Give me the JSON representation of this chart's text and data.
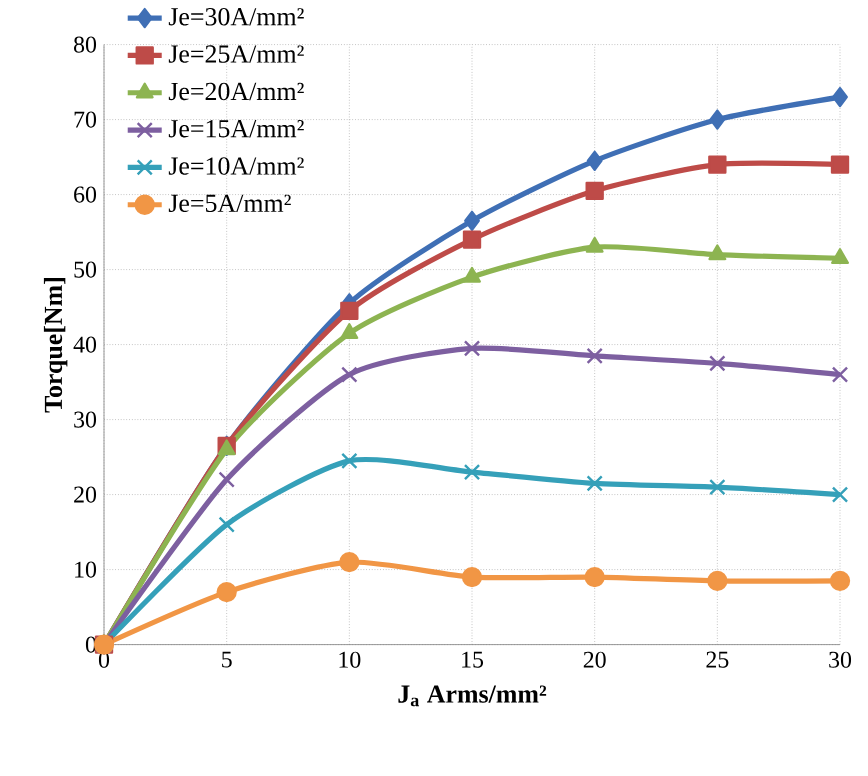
{
  "chart_data": {
    "type": "line",
    "xlabel": "J$_{a}$ Arms/mm²",
    "ylabel": "Torque[Nm]",
    "x": [
      0,
      5,
      10,
      15,
      20,
      25,
      30
    ],
    "series": [
      {
        "name": "Je=30A/mm²",
        "color": "#3f6fb5",
        "marker": "diamond",
        "values": [
          0,
          26.5,
          45.5,
          56.5,
          64.5,
          70,
          73
        ]
      },
      {
        "name": "Je=25A/mm²",
        "color": "#be4b48",
        "marker": "square",
        "values": [
          0,
          26.5,
          44.5,
          54,
          60.5,
          64,
          64
        ]
      },
      {
        "name": "Je=20A/mm²",
        "color": "#8db451",
        "marker": "triangle",
        "values": [
          0,
          26,
          41.5,
          49,
          53,
          52,
          51.5
        ]
      },
      {
        "name": "Je=15A/mm²",
        "color": "#7d5fa0",
        "marker": "cross",
        "values": [
          0,
          22,
          36,
          39.5,
          38.5,
          37.5,
          36
        ]
      },
      {
        "name": "Je=10A/mm²",
        "color": "#35a0b9",
        "marker": "cross",
        "values": [
          0,
          16,
          24.5,
          23,
          21.5,
          21,
          20
        ]
      },
      {
        "name": "Je=5A/mm²",
        "color": "#f19645",
        "marker": "circle",
        "values": [
          0,
          7,
          11,
          9,
          9,
          8.5,
          8.5
        ]
      }
    ],
    "xlim": [
      0,
      30
    ],
    "xticks": [
      0,
      5,
      10,
      15,
      20,
      25,
      30
    ],
    "ylim": [
      0,
      80
    ],
    "yticks": [
      0,
      10,
      20,
      30,
      40,
      50,
      60,
      70,
      80
    ],
    "grid": true,
    "legend": "top left",
    "line_style": "solid"
  }
}
